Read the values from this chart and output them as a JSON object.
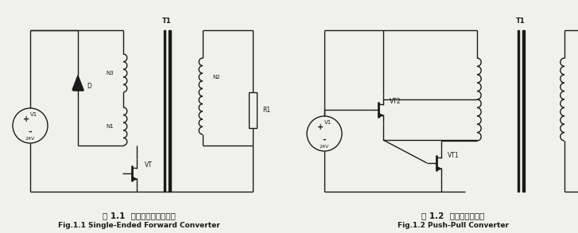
{
  "bg_color": "#f0f0ec",
  "title1_zh": "图 1.1  单端正激式变换电路",
  "title1_en": "Fig.1.1 Single-Ended Forward Converter",
  "title2_zh": "图 1.2  推挽式变换电路",
  "title2_en": "Fig.1.2 Push-Pull Converter",
  "line_color": "#1a1a1a",
  "fig_width": 7.27,
  "fig_height": 2.93,
  "dpi": 100
}
